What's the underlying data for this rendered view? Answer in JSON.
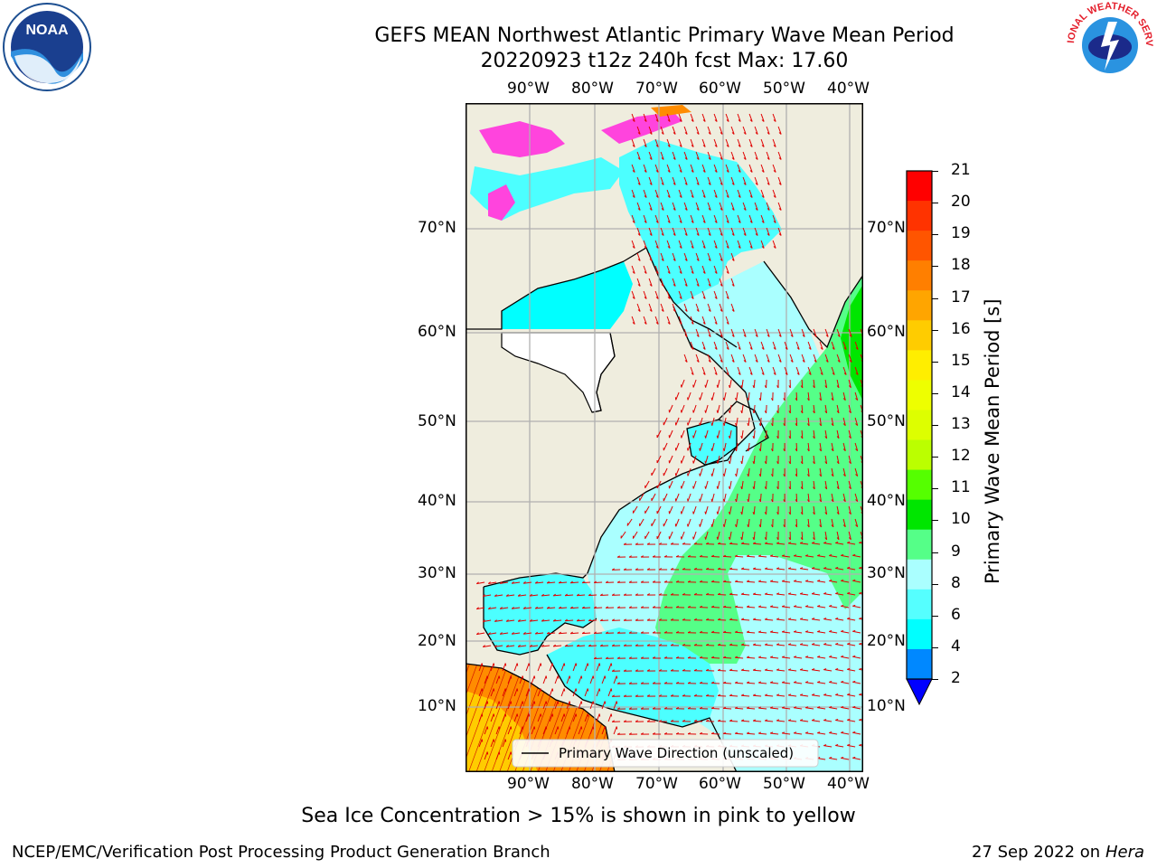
{
  "header": {
    "title_line1": "GEFS MEAN Northwest Atlantic Primary Wave Mean Period",
    "title_line2": "20220923 t12z 240h fcst   Max: 17.60"
  },
  "map": {
    "lon_labels": [
      "90°W",
      "80°W",
      "70°W",
      "60°W",
      "50°W",
      "40°W"
    ],
    "lat_labels": [
      "70°N",
      "60°N",
      "50°N",
      "40°N",
      "30°N",
      "20°N",
      "10°N"
    ],
    "legend_label": "Primary Wave Direction (unscaled)"
  },
  "colorbar": {
    "label": "Primary Wave Mean Period [s]",
    "ticks": [
      "21",
      "20",
      "19",
      "18",
      "17",
      "16",
      "15",
      "14",
      "13",
      "12",
      "11",
      "10",
      "9",
      "8",
      "6",
      "4",
      "2"
    ],
    "colors": [
      "#ff0000",
      "#ff3300",
      "#ff5500",
      "#ff7f00",
      "#ffa500",
      "#ffcc00",
      "#ffee00",
      "#eeff00",
      "#ddff00",
      "#bbff00",
      "#55ff00",
      "#00e600",
      "#55ff88",
      "#aaffff",
      "#55ffff",
      "#00ffff",
      "#0088ff"
    ],
    "underflow_color": "#0000ff"
  },
  "footer": {
    "note": "Sea Ice Concentration > 15% is shown in pink to yellow",
    "left": "NCEP/EMC/Verification Post Processing Product Generation Branch",
    "right_date": "27 Sep 2022 on",
    "right_host": "Hera"
  },
  "logos": {
    "left": "NOAA",
    "right": "NATIONAL WEATHER SERVICE"
  }
}
